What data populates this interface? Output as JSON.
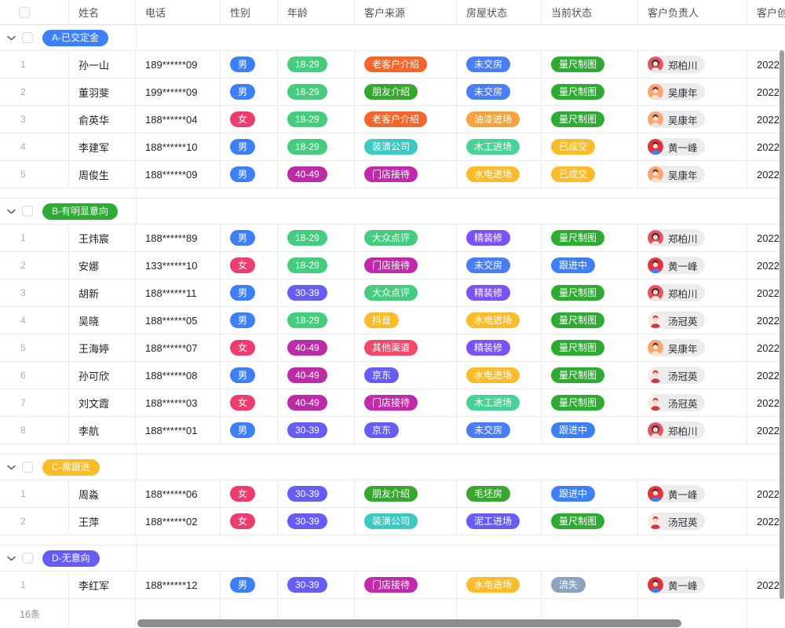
{
  "header": {
    "columns": [
      "姓名",
      "电话",
      "性别",
      "年龄",
      "客户来源",
      "房屋状态",
      "当前状态",
      "客户负责人",
      "客户创建时间"
    ]
  },
  "tag_colors": {
    "男": "#3d7ff7",
    "女": "#ed3c6e",
    "18-29": "#46cc7f",
    "30-39": "#675df4",
    "40-49": "#bd2ba6",
    "老客户介绍": "#f6652a",
    "朋友介绍": "#38a72f",
    "装潢公司": "#3ec8c3",
    "门店接待": "#c12bab",
    "大众点评": "#46cc7f",
    "抖音": "#fbbc2c",
    "其他渠道": "#f4486b",
    "京东": "#675df4",
    "未交房": "#4b7cf3",
    "油漆进场": "#f9a23b",
    "木工进场": "#48d295",
    "水电进场": "#fbbc2c",
    "精装修": "#7a52f5",
    "毛坯房": "#38a72f",
    "泥工进场": "#675df4",
    "量尺制图": "#2eab33",
    "已成交": "#fbbc2c",
    "跟进中": "#3d7ff7",
    "流失": "#8ca3bf"
  },
  "owners": {
    "郑柏川": {
      "bg": "#e85360",
      "hair": "#3a3040",
      "shirt": "#f6e3e0",
      "skin": "#ffd9c4",
      "style": "female"
    },
    "吴康年": {
      "bg": "#f7a571",
      "hair": "#433530",
      "shirt": "#fbe3c9",
      "skin": "#ffd9c4",
      "style": "male"
    },
    "黄一峰": {
      "bg": "#e3323c",
      "hair": "#2f2b33",
      "shirt": "#3d7ff7",
      "skin": "#ffd9c4",
      "style": "male"
    },
    "汤冠英": {
      "bg": "#f3ece7",
      "hair": "#cf3a3f",
      "shirt": "#d8343c",
      "skin": "#ffd9c4",
      "style": "male"
    }
  },
  "groups": [
    {
      "label": "A-已交定金",
      "color": "#3d7ff7",
      "rows": [
        {
          "num": "1",
          "name": "孙一山",
          "phone": "189******09",
          "gender": "男",
          "age": "18-29",
          "source": "老客户介绍",
          "house": "未交房",
          "status": "量尺制图",
          "owner": "郑柏川",
          "created": "2022"
        },
        {
          "num": "2",
          "name": "董羽斐",
          "phone": "199******09",
          "gender": "男",
          "age": "18-29",
          "source": "朋友介绍",
          "house": "未交房",
          "status": "量尺制图",
          "owner": "吴康年",
          "created": "2022"
        },
        {
          "num": "3",
          "name": "俞英华",
          "phone": "188******04",
          "gender": "女",
          "age": "18-29",
          "source": "老客户介绍",
          "house": "油漆进场",
          "status": "量尺制图",
          "owner": "吴康年",
          "created": "2022"
        },
        {
          "num": "4",
          "name": "李建军",
          "phone": "188******10",
          "gender": "男",
          "age": "18-29",
          "source": "装潢公司",
          "house": "木工进场",
          "status": "已成交",
          "owner": "黄一峰",
          "created": "2022"
        },
        {
          "num": "5",
          "name": "周俊生",
          "phone": "188******09",
          "gender": "男",
          "age": "40-49",
          "source": "门店接待",
          "house": "水电进场",
          "status": "已成交",
          "owner": "吴康年",
          "created": "2022"
        }
      ]
    },
    {
      "label": "B-有明显意向",
      "color": "#2eab33",
      "rows": [
        {
          "num": "1",
          "name": "王炜宸",
          "phone": "188******89",
          "gender": "男",
          "age": "18-29",
          "source": "大众点评",
          "house": "精装修",
          "status": "量尺制图",
          "owner": "郑柏川",
          "created": "2022"
        },
        {
          "num": "2",
          "name": "安娜",
          "phone": "133******10",
          "gender": "女",
          "age": "18-29",
          "source": "门店接待",
          "house": "未交房",
          "status": "跟进中",
          "owner": "黄一峰",
          "created": "2022"
        },
        {
          "num": "3",
          "name": "胡新",
          "phone": "188******11",
          "gender": "男",
          "age": "30-39",
          "source": "大众点评",
          "house": "精装修",
          "status": "量尺制图",
          "owner": "郑柏川",
          "created": "2022"
        },
        {
          "num": "4",
          "name": "吴晓",
          "phone": "188******05",
          "gender": "男",
          "age": "18-29",
          "source": "抖音",
          "house": "水电进场",
          "status": "量尺制图",
          "owner": "汤冠英",
          "created": "2022"
        },
        {
          "num": "5",
          "name": "王海婷",
          "phone": "188******07",
          "gender": "女",
          "age": "40-49",
          "source": "其他渠道",
          "house": "精装修",
          "status": "量尺制图",
          "owner": "吴康年",
          "created": "2022"
        },
        {
          "num": "6",
          "name": "孙可欣",
          "phone": "188******08",
          "gender": "男",
          "age": "40-49",
          "source": "京东",
          "house": "水电进场",
          "status": "量尺制图",
          "owner": "汤冠英",
          "created": "2022"
        },
        {
          "num": "7",
          "name": "刘文霞",
          "phone": "188******03",
          "gender": "女",
          "age": "40-49",
          "source": "门店接待",
          "house": "木工进场",
          "status": "量尺制图",
          "owner": "汤冠英",
          "created": "2022"
        },
        {
          "num": "8",
          "name": "李航",
          "phone": "188******01",
          "gender": "男",
          "age": "30-39",
          "source": "京东",
          "house": "未交房",
          "status": "跟进中",
          "owner": "郑柏川",
          "created": "2022"
        }
      ]
    },
    {
      "label": "C-需跟进",
      "color": "#fbbc2c",
      "rows": [
        {
          "num": "1",
          "name": "周淼",
          "phone": "188******06",
          "gender": "女",
          "age": "30-39",
          "source": "朋友介绍",
          "house": "毛坯房",
          "status": "跟进中",
          "owner": "黄一峰",
          "created": "2022"
        },
        {
          "num": "2",
          "name": "王萍",
          "phone": "188******02",
          "gender": "女",
          "age": "30-39",
          "source": "装潢公司",
          "house": "泥工进场",
          "status": "量尺制图",
          "owner": "汤冠英",
          "created": "2022"
        }
      ]
    },
    {
      "label": "D-无意向",
      "color": "#675df4",
      "rows": [
        {
          "num": "1",
          "name": "李红军",
          "phone": "188******12",
          "gender": "男",
          "age": "30-39",
          "source": "门店接待",
          "house": "水电进场",
          "status": "流失",
          "owner": "黄一峰",
          "created": "2022"
        }
      ]
    }
  ],
  "footer": {
    "count": "16条"
  }
}
